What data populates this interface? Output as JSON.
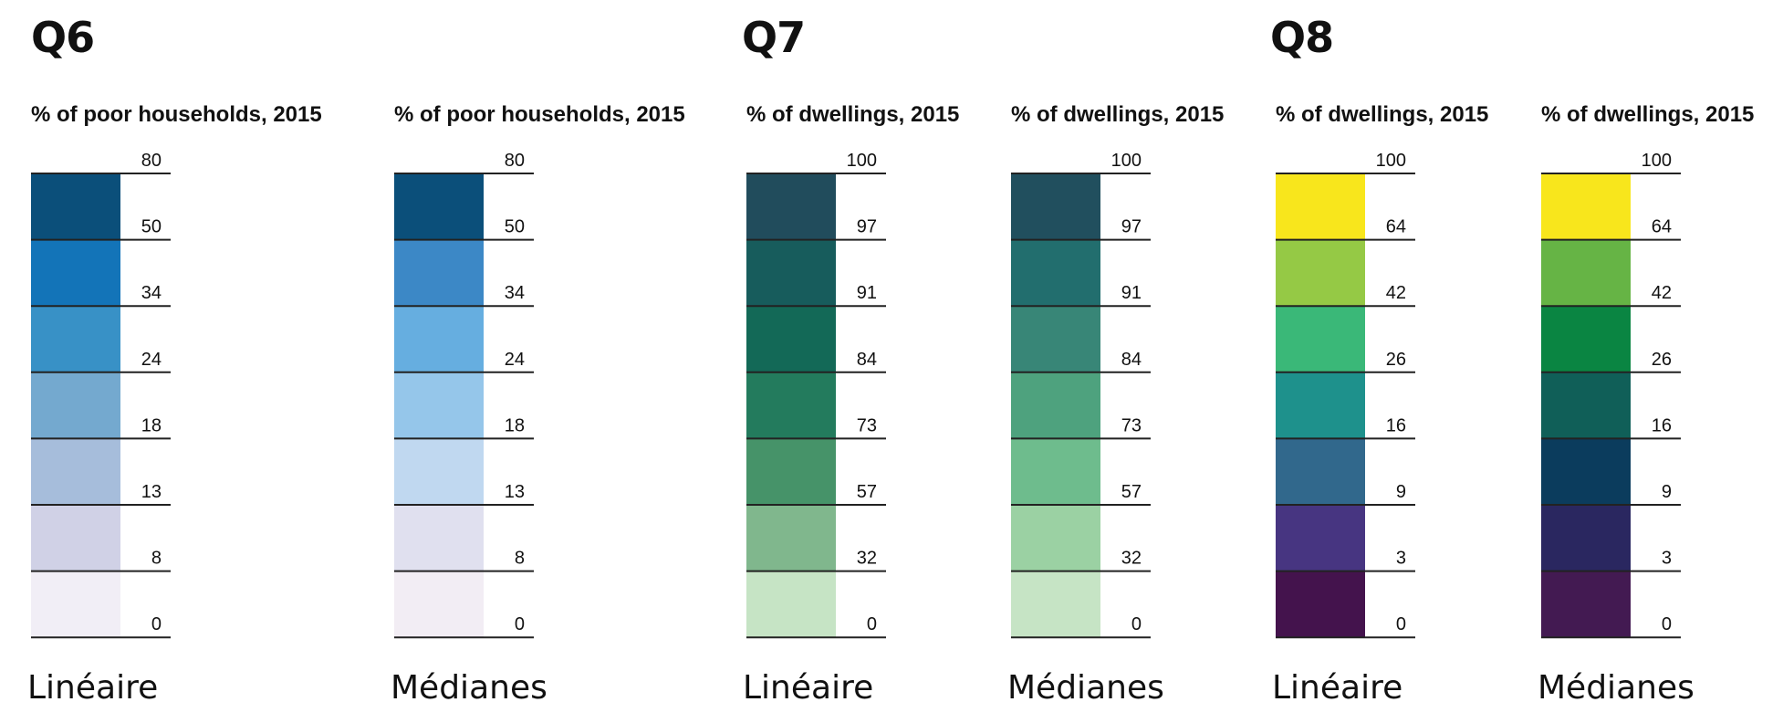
{
  "groups": [
    {
      "title": "Q6"
    },
    {
      "title": "Q7"
    },
    {
      "title": "Q8"
    }
  ],
  "chart_data": [
    {
      "type": "legend",
      "group": "Q6",
      "title": "% of poor households, 2015",
      "footer": "Linéaire",
      "breaks": [
        "80",
        "50",
        "34",
        "24",
        "18",
        "13",
        "8",
        "0"
      ],
      "colors": [
        "#0b4f7a",
        "#1374b8",
        "#3891c6",
        "#74a9cf",
        "#a6bddb",
        "#d0d1e6",
        "#f1eef6"
      ]
    },
    {
      "type": "legend",
      "group": "Q6",
      "title": "% of poor households, 2015",
      "footer": "Médianes",
      "breaks": [
        "80",
        "50",
        "34",
        "24",
        "18",
        "13",
        "8",
        "0"
      ],
      "colors": [
        "#0b4f7a",
        "#3c88c6",
        "#66aee0",
        "#95c6ea",
        "#c0d8f0",
        "#e0e0ef",
        "#f2edf4"
      ]
    },
    {
      "type": "legend",
      "group": "Q7",
      "title": "% of dwellings, 2015",
      "footer": "Linéaire",
      "breaks": [
        "100",
        "97",
        "91",
        "84",
        "73",
        "57",
        "32",
        "0"
      ],
      "colors": [
        "#214c5c",
        "#175c5c",
        "#136957",
        "#237b5d",
        "#469369",
        "#80b78d",
        "#c6e4c5"
      ]
    },
    {
      "type": "legend",
      "group": "Q7",
      "title": "% of dwellings, 2015",
      "footer": "Médianes",
      "breaks": [
        "100",
        "97",
        "91",
        "84",
        "73",
        "57",
        "32",
        "0"
      ],
      "colors": [
        "#214f5e",
        "#226e6e",
        "#388677",
        "#4ea27e",
        "#6ebc8d",
        "#9bd1a3",
        "#c6e4c5"
      ]
    },
    {
      "type": "legend",
      "group": "Q8",
      "title": "% of dwellings, 2015",
      "footer": "Linéaire",
      "breaks": [
        "100",
        "64",
        "42",
        "26",
        "16",
        "9",
        "3",
        "0"
      ],
      "colors": [
        "#f8e61c",
        "#95c945",
        "#3ab878",
        "#1e918c",
        "#31688c",
        "#473581",
        "#44134d"
      ]
    },
    {
      "type": "legend",
      "group": "Q8",
      "title": "% of dwellings, 2015",
      "footer": "Médianes",
      "breaks": [
        "100",
        "64",
        "42",
        "26",
        "16",
        "9",
        "3",
        "0"
      ],
      "colors": [
        "#f8e61c",
        "#66b445",
        "#0a8542",
        "#105f58",
        "#0b3c5d",
        "#2a2760",
        "#431a52"
      ]
    }
  ]
}
